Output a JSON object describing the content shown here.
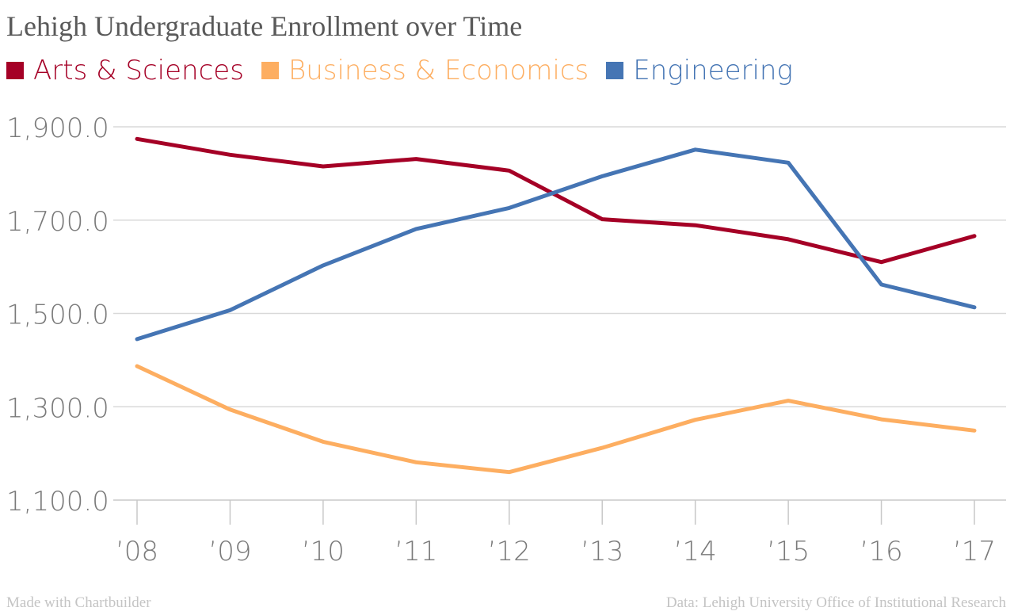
{
  "chart_data": {
    "type": "line",
    "title": "Lehigh Undergraduate Enrollment over Time",
    "x": [
      "’08",
      "’09",
      "’10",
      "’11",
      "’12",
      "’13",
      "’14",
      "’15",
      "’16",
      "’17"
    ],
    "y_ticks": [
      "1,100.0",
      "1,300.0",
      "1,500.0",
      "1,700.0",
      "1,900.0"
    ],
    "ylim": [
      1100,
      1900
    ],
    "grid": true,
    "legend_placement": "top",
    "series": [
      {
        "name": "Arts & Sciences",
        "color": "#a50026",
        "values": [
          1874,
          1840,
          1815,
          1831,
          1806,
          1702,
          1689,
          1659,
          1610,
          1666
        ]
      },
      {
        "name": "Business & Economics",
        "color": "#fdae61",
        "values": [
          1387,
          1294,
          1225,
          1181,
          1160,
          1212,
          1272,
          1313,
          1273,
          1249
        ]
      },
      {
        "name": "Engineering",
        "color": "#4575b4",
        "values": [
          1445,
          1507,
          1603,
          1681,
          1726,
          1794,
          1851,
          1823,
          1562,
          1513
        ]
      }
    ]
  },
  "footer": {
    "left": "Made with Chartbuilder",
    "right": "Data: Lehigh University Office of Institutional Research"
  }
}
